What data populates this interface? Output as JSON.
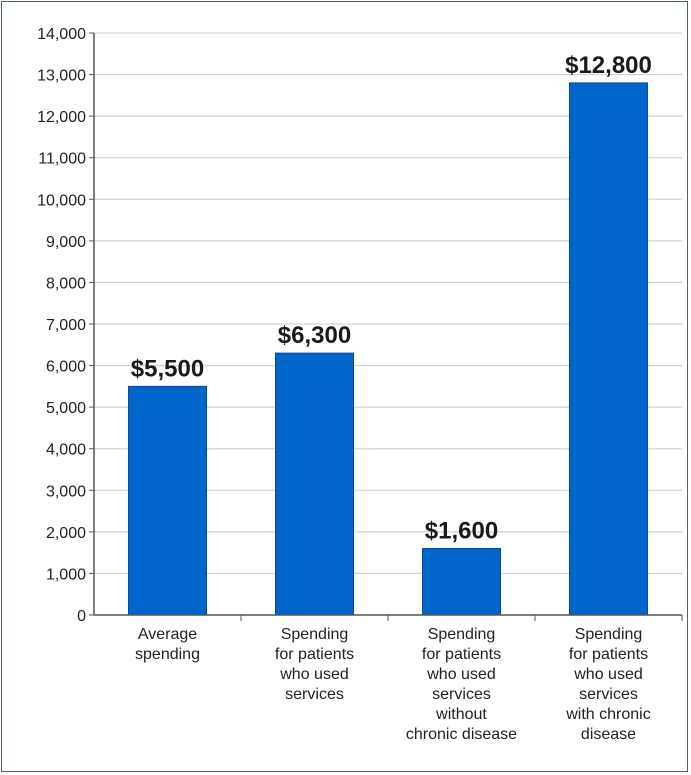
{
  "chart_data": {
    "type": "bar",
    "title": "",
    "xlabel": "",
    "ylabel": "",
    "ylim": [
      0,
      14000
    ],
    "yticks": [
      0,
      1000,
      2000,
      3000,
      4000,
      5000,
      6000,
      7000,
      8000,
      9000,
      10000,
      11000,
      12000,
      13000,
      14000
    ],
    "ytick_labels": [
      "0",
      "1,000",
      "2,000",
      "3,000",
      "4,000",
      "5,000",
      "6,000",
      "7,000",
      "8,000",
      "9,000",
      "10,000",
      "11,000",
      "12,000",
      "13,000",
      "14,000"
    ],
    "grid": true,
    "bar_color": "#0066cc",
    "categories": [
      [
        "Average",
        "spending"
      ],
      [
        "Spending",
        "for patients",
        "who used",
        "services"
      ],
      [
        "Spending",
        "for patients",
        "who used",
        "services",
        "without",
        "chronic disease"
      ],
      [
        "Spending",
        "for patients",
        "who used",
        "services",
        "with chronic",
        "disease"
      ]
    ],
    "values": [
      5500,
      6300,
      1600,
      12800
    ],
    "data_labels": [
      "$5,500",
      "$6,300",
      "$1,600",
      "$12,800"
    ]
  }
}
